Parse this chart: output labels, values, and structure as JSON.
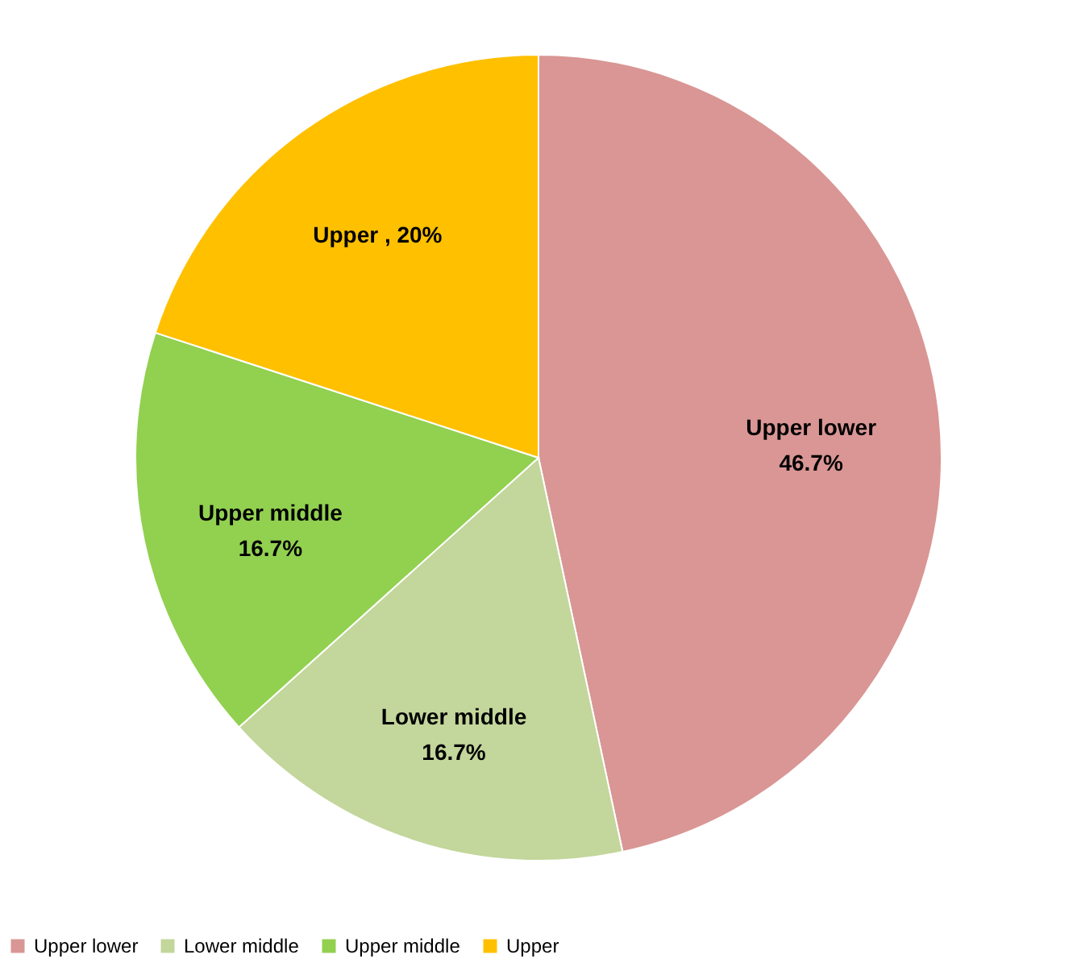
{
  "chart_data": {
    "type": "pie",
    "categories": [
      "Upper lower",
      "Lower middle",
      "Upper middle",
      "Upper"
    ],
    "values": [
      46.7,
      16.7,
      16.7,
      20
    ],
    "colors": [
      "#d99694",
      "#c3d69b",
      "#92d050",
      "#ffc000"
    ],
    "value_labels": [
      "Upper lower\n46.7%",
      "Lower middle\n16.7%",
      "Upper middle\n16.7%",
      "Upper   , 20%"
    ],
    "legend": "bottom"
  }
}
